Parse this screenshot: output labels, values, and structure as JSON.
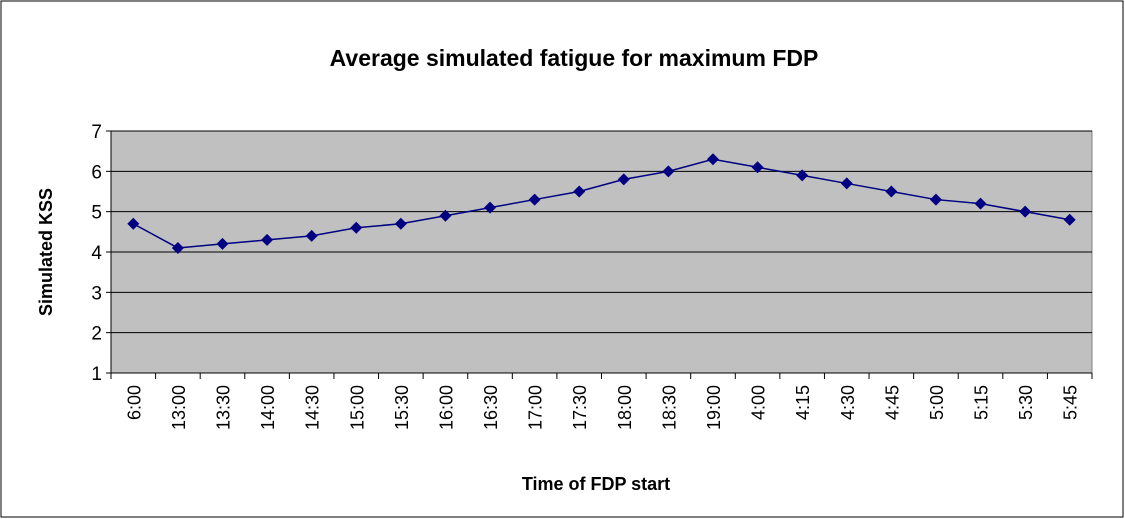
{
  "chart_data": {
    "type": "line",
    "title": "Average simulated fatigue for maximum FDP",
    "x_label": "Time of FDP start",
    "y_label": "Simulated KSS",
    "categories": [
      "6:00",
      "13:00",
      "13:30",
      "14:00",
      "14:30",
      "15:00",
      "15:30",
      "16:00",
      "16:30",
      "17:00",
      "17:30",
      "18:00",
      "18:30",
      "19:00",
      "4:00",
      "4:15",
      "4:30",
      "4:45",
      "5:00",
      "5:15",
      "5:30",
      "5:45"
    ],
    "values": [
      4.7,
      4.1,
      4.2,
      4.3,
      4.4,
      4.6,
      4.7,
      4.9,
      5.1,
      5.3,
      5.5,
      5.8,
      6.0,
      6.3,
      6.1,
      5.9,
      5.7,
      5.5,
      5.3,
      5.2,
      5.0,
      4.8
    ],
    "color": "#000080",
    "ylim": [
      1,
      7
    ],
    "yticks": [
      1,
      2,
      3,
      4,
      5,
      6,
      7
    ],
    "grid": true
  }
}
